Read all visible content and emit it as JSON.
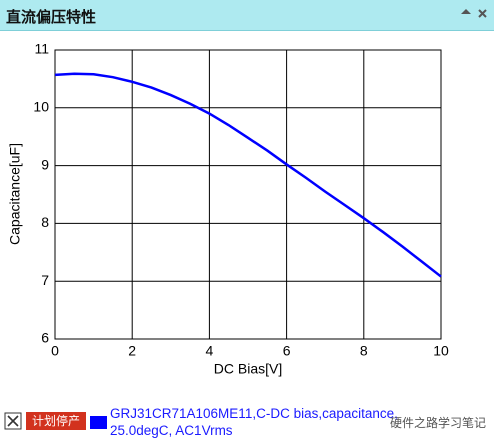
{
  "header": {
    "title": "直流偏压特性"
  },
  "chart_data": {
    "type": "line",
    "x_label": "DC Bias[V]",
    "y_label": "Capacitance[uF]",
    "x": [
      0,
      0.5,
      1,
      1.5,
      2,
      2.5,
      3,
      3.5,
      4,
      4.5,
      5,
      5.5,
      6,
      6.5,
      7,
      7.5,
      8,
      8.5,
      9,
      9.5,
      10
    ],
    "series": [
      {
        "name": "GRJ31CR71A106ME11,C-DC bias,capacitance, 25.0degC, AC1Vrms",
        "color": "#0000ff",
        "values": [
          10.57,
          10.59,
          10.58,
          10.53,
          10.45,
          10.35,
          10.22,
          10.07,
          9.9,
          9.7,
          9.48,
          9.26,
          9.02,
          8.79,
          8.55,
          8.32,
          8.09,
          7.85,
          7.6,
          7.34,
          7.08
        ]
      }
    ],
    "xlim": [
      0,
      10
    ],
    "xticks": [
      0,
      2,
      4,
      6,
      8,
      10
    ],
    "ylim": [
      6,
      11
    ],
    "yticks": [
      6,
      7,
      8,
      9,
      10,
      11
    ],
    "grid": true
  },
  "footer": {
    "badge": "计划停产",
    "watermark": "硬件之路学习笔记"
  }
}
